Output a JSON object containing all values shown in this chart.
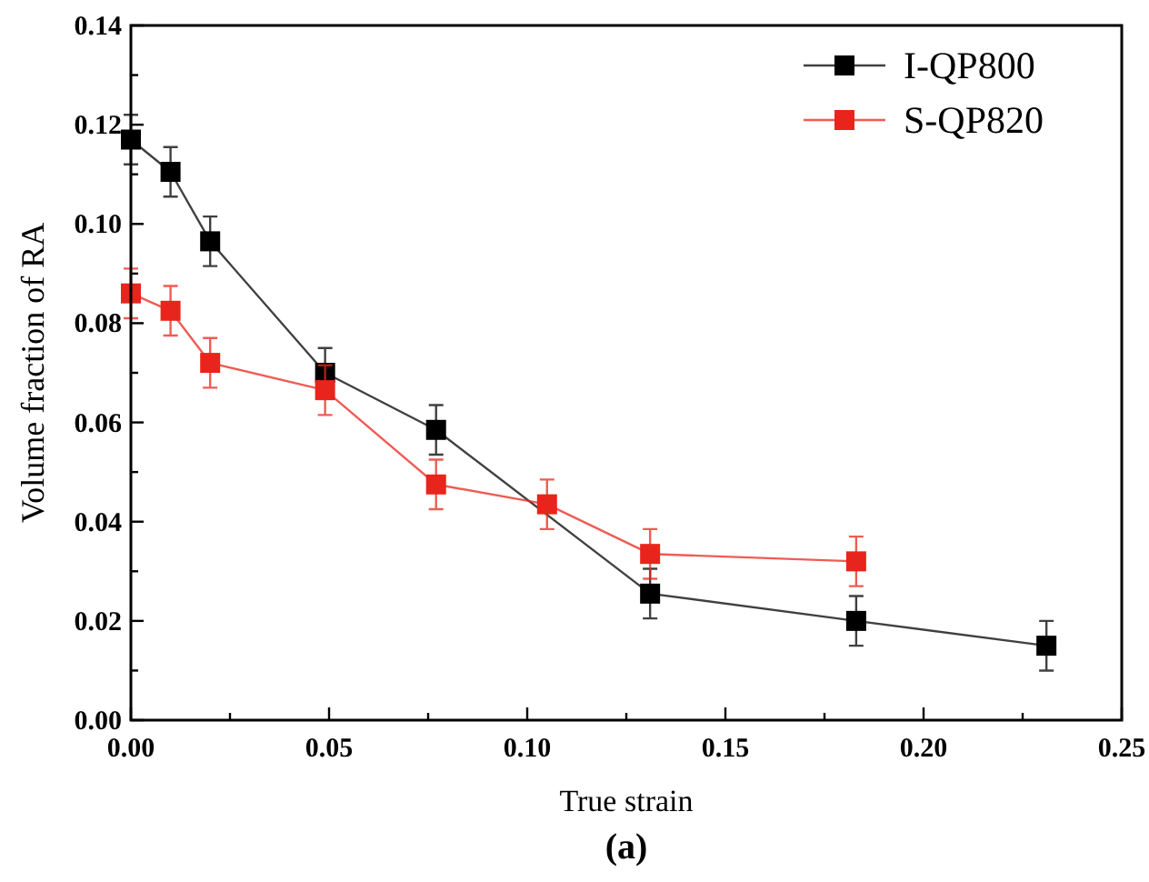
{
  "chart_data": {
    "type": "line",
    "xlabel": "True strain",
    "ylabel": "Volume fraction of RA",
    "xlim": [
      0,
      0.25
    ],
    "ylim": [
      0,
      0.14
    ],
    "xticks": [
      "0.00",
      {
        "value": 0.025,
        "label": null
      },
      {
        "value": 0.05,
        "label": "0.05"
      },
      {
        "value": 0.075,
        "label": null
      },
      {
        "value": 0.1,
        "label": "0.10"
      },
      {
        "value": 0.125,
        "label": null
      },
      {
        "value": 0.15,
        "label": "0.15"
      },
      {
        "value": 0.175,
        "label": null
      },
      {
        "value": 0.2,
        "label": "0.20"
      },
      {
        "value": 0.225,
        "label": null
      },
      {
        "value": 0.25,
        "label": "0.25"
      }
    ],
    "yticks": [
      {
        "value": 0,
        "label": "0.00"
      },
      {
        "value": 0.01,
        "label": null
      },
      {
        "value": 0.02,
        "label": "0.02"
      },
      {
        "value": 0.03,
        "label": null
      },
      {
        "value": 0.04,
        "label": "0.04"
      },
      {
        "value": 0.05,
        "label": null
      },
      {
        "value": 0.06,
        "label": "0.06"
      },
      {
        "value": 0.07,
        "label": null
      },
      {
        "value": 0.08,
        "label": "0.08"
      },
      {
        "value": 0.09,
        "label": null
      },
      {
        "value": 0.1,
        "label": "0.10"
      },
      {
        "value": 0.11,
        "label": null
      },
      {
        "value": 0.12,
        "label": "0.12"
      },
      {
        "value": 0.13,
        "label": null
      },
      {
        "value": 0.14,
        "label": "0.14"
      }
    ],
    "marker": "square",
    "legend": "top right",
    "grid": false,
    "annotations": [
      "(a)"
    ],
    "series": [
      {
        "name": "I-QP800",
        "color": "#000000",
        "x": [
          0,
          0.01,
          0.02,
          0.049,
          0.077,
          0.131,
          0.183,
          0.231
        ],
        "values": [
          0.117,
          0.1105,
          0.0965,
          0.07,
          0.0585,
          0.0255,
          0.02,
          0.015
        ],
        "errors": [
          0.005,
          0.005,
          0.005,
          0.005,
          0.005,
          0.005,
          0.005,
          0.005
        ]
      },
      {
        "name": "S-QP820",
        "color": "#e8251c",
        "x": [
          0,
          0.01,
          0.02,
          0.049,
          0.077,
          0.105,
          0.131,
          0.183
        ],
        "values": [
          0.086,
          0.0825,
          0.072,
          0.0665,
          0.0475,
          0.0435,
          0.0335,
          0.032
        ],
        "errors": [
          0.005,
          0.005,
          0.005,
          0.005,
          0.005,
          0.005,
          0.005,
          0.005
        ]
      }
    ]
  }
}
